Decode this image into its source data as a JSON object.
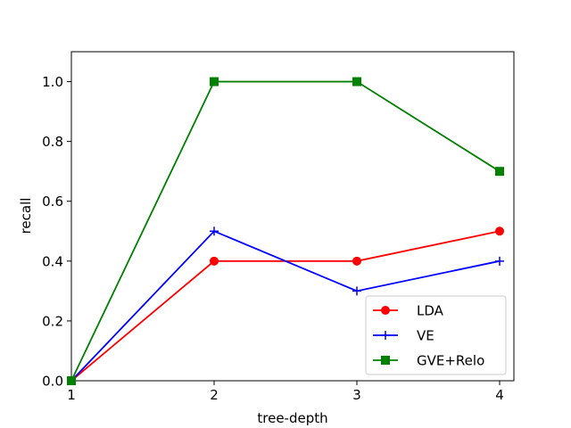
{
  "chart_data": {
    "type": "line",
    "xlabel": "tree-depth",
    "ylabel": "recall",
    "x": [
      1,
      2,
      3,
      4
    ],
    "xlim": [
      1,
      4.1
    ],
    "ylim": [
      0,
      1.1
    ],
    "xticks": [
      "1",
      "2",
      "3",
      "4"
    ],
    "yticks": [
      "0.0",
      "0.2",
      "0.4",
      "0.6",
      "0.8",
      "1.0"
    ],
    "grid": false,
    "legend_position": "lower-right",
    "series": [
      {
        "name": "LDA",
        "values": [
          0,
          0.4,
          0.4,
          0.5
        ],
        "color": "#ff0000",
        "marker": "circle"
      },
      {
        "name": "VE",
        "values": [
          0,
          0.5,
          0.3,
          0.4
        ],
        "color": "#0000ff",
        "marker": "plus"
      },
      {
        "name": "GVE+Relo",
        "values": [
          0,
          1.0,
          1.0,
          0.7
        ],
        "color": "#008000",
        "marker": "square"
      }
    ]
  }
}
